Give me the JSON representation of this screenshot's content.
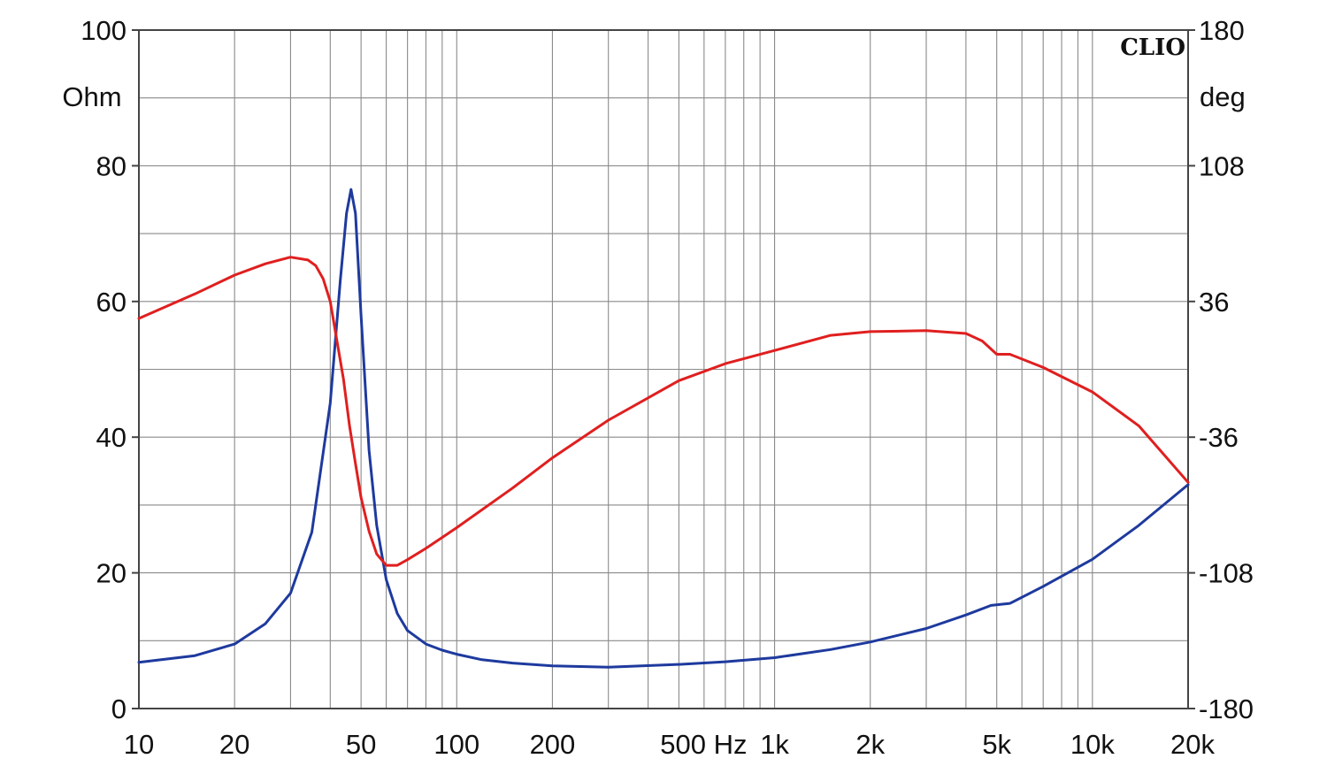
{
  "chart_data": {
    "type": "line",
    "title": "",
    "brand": "CLIO",
    "x_scale": "log",
    "xlim": [
      10,
      20000
    ],
    "x_tick_values": [
      10,
      20,
      50,
      100,
      200,
      500,
      1000,
      2000,
      5000,
      10000,
      20000
    ],
    "x_tick_labels": [
      "10",
      "20",
      "50",
      "100",
      "200",
      "500 Hz",
      "1k",
      "2k",
      "5k",
      "10k",
      "20k"
    ],
    "y_left": {
      "unit": "Ohm",
      "ylim": [
        0,
        100
      ],
      "ticks": [
        0,
        20,
        40,
        60,
        80,
        100
      ],
      "tick_labels": [
        "0",
        "20",
        "40",
        "60",
        "80",
        "100"
      ]
    },
    "y_right": {
      "unit": "deg",
      "ylim": [
        -180,
        180
      ],
      "ticks": [
        -180,
        -108,
        -36,
        36,
        108,
        180
      ],
      "tick_labels": [
        "-180",
        "-108",
        "-36",
        "36",
        "108",
        "180"
      ]
    },
    "grid": true,
    "series": [
      {
        "key": "impedance",
        "axis": "left",
        "color": "#1e3a9e",
        "x": [
          10,
          15,
          20,
          25,
          30,
          35,
          40,
          43,
          45,
          46.5,
          48,
          50,
          53,
          56,
          60,
          65,
          70,
          80,
          90,
          100,
          120,
          150,
          200,
          300,
          500,
          700,
          1000,
          1500,
          2000,
          3000,
          4000,
          4800,
          5500,
          7000,
          10000,
          14000,
          20000
        ],
        "y": [
          6.8,
          7.8,
          9.5,
          12.5,
          17,
          26,
          45,
          63,
          73,
          76.5,
          73,
          58,
          38,
          27,
          19,
          14,
          11.5,
          9.5,
          8.6,
          8,
          7.2,
          6.7,
          6.3,
          6.1,
          6.5,
          6.9,
          7.5,
          8.7,
          9.8,
          11.8,
          13.8,
          15.2,
          15.5,
          18,
          22,
          27,
          33
        ]
      },
      {
        "key": "phase",
        "axis": "right",
        "color": "#e01f1f",
        "x": [
          10,
          15,
          20,
          25,
          30,
          34,
          36,
          38,
          40,
          42,
          44,
          46,
          48,
          50,
          53,
          56,
          60,
          65,
          70,
          80,
          100,
          150,
          200,
          300,
          500,
          700,
          1000,
          1500,
          2000,
          3000,
          4000,
          4500,
          5000,
          5500,
          7000,
          10000,
          14000,
          20000
        ],
        "y": [
          27,
          40,
          50,
          56,
          59.5,
          58,
          55,
          48,
          36,
          15,
          -5,
          -30,
          -50,
          -68,
          -86,
          -98,
          -104,
          -104,
          -101,
          -95,
          -84,
          -63,
          -47,
          -27,
          -6,
          3,
          10,
          18,
          20,
          20.5,
          19,
          15,
          8,
          8,
          1,
          -12,
          -30,
          -60
        ]
      }
    ]
  }
}
